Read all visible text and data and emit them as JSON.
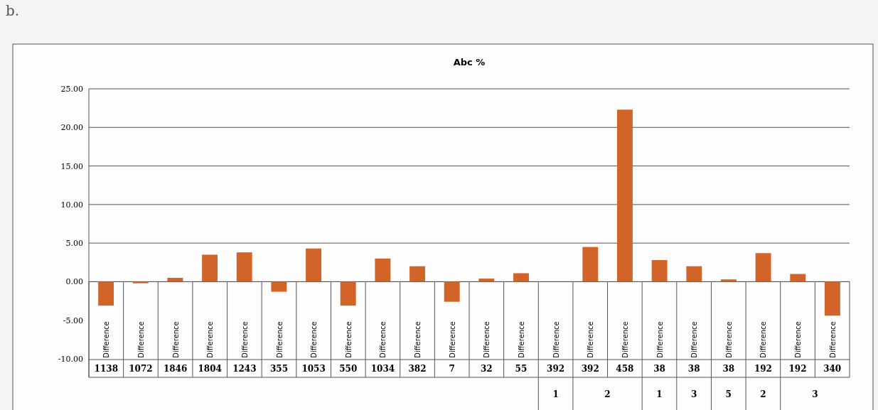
{
  "chart_data": {
    "type": "bar",
    "title": "Abc %",
    "categories": [
      "Difference",
      "Difference",
      "Difference",
      "Difference",
      "Difference",
      "Difference",
      "Difference",
      "Difference",
      "Difference",
      "Difference",
      "Difference",
      "Difference",
      "Difference",
      "Difference",
      "Difference",
      "Difference",
      "Difference",
      "Difference",
      "Difference",
      "Difference",
      "Difference",
      "Difference"
    ],
    "values": [
      -3.1,
      -0.2,
      0.5,
      3.5,
      3.8,
      -1.3,
      4.3,
      -3.1,
      3.0,
      2.0,
      -2.6,
      0.4,
      1.1,
      null,
      4.5,
      22.3,
      2.8,
      2.0,
      0.3,
      3.7,
      1.0,
      -4.4
    ],
    "color": "#d2642a",
    "ylim": [
      -10,
      25
    ],
    "yticks": [
      {
        "value": -10,
        "label": "-10.00"
      },
      {
        "value": -5,
        "label": "-5.00"
      },
      {
        "value": 0,
        "label": "0.00"
      },
      {
        "value": 5,
        "label": "5.00"
      },
      {
        "value": 10,
        "label": "10.00"
      },
      {
        "value": 15,
        "label": "15.00"
      },
      {
        "value": 20,
        "label": "20.00"
      },
      {
        "value": 25,
        "label": "25.00"
      }
    ],
    "grid": "y",
    "annotations": [
      "b.",
      "1138",
      "1072",
      "1846",
      "1804",
      "1243",
      "355",
      "1053",
      "550",
      "1034",
      "382",
      "7",
      "32",
      "55",
      "392",
      "392",
      "458",
      "38",
      "38",
      "38",
      "192",
      "192",
      "340",
      "1",
      "2",
      "1",
      "3",
      "5",
      "2",
      "3"
    ]
  }
}
